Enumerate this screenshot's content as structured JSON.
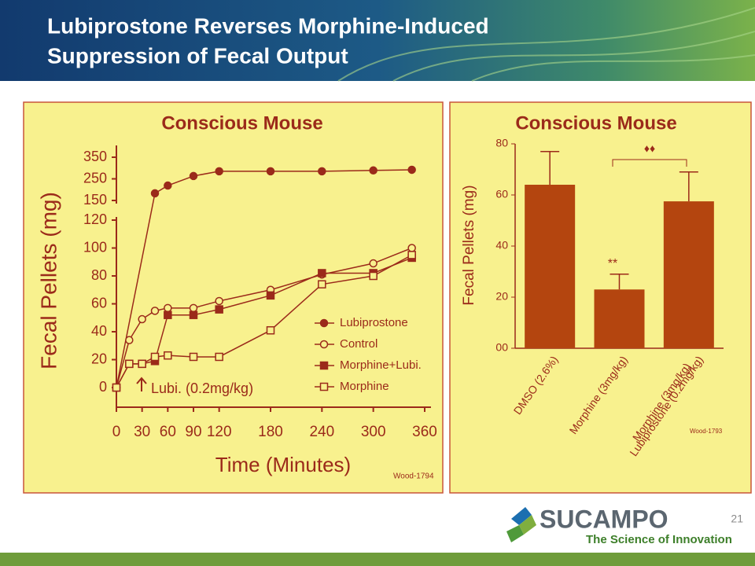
{
  "header": {
    "title": [
      "Lubiprostone Reverses Morphine-Induced",
      "Suppression of Fecal Output"
    ]
  },
  "chart_data": [
    {
      "type": "line",
      "title": "Conscious Mouse",
      "xlabel": "Time (Minutes)",
      "ylabel": "Fecal Pellets (mg)",
      "xlim": [
        0,
        360
      ],
      "xticks": [
        0,
        30,
        60,
        90,
        120,
        180,
        240,
        300,
        360
      ],
      "ylim": [
        0,
        350
      ],
      "y_break": [
        120,
        150
      ],
      "yticks": [
        0,
        20,
        40,
        60,
        80,
        100,
        120,
        150,
        250,
        350
      ],
      "color": "#9b2a1a",
      "legend": "right",
      "series": [
        {
          "name": "Lubiprostone",
          "marker": "filled-circle",
          "x": [
            0,
            45,
            60,
            90,
            120,
            180,
            240,
            300,
            345
          ],
          "values": [
            0,
            183,
            219,
            263,
            285,
            285,
            285,
            289,
            292
          ]
        },
        {
          "name": "Control",
          "marker": "open-circle",
          "x": [
            0,
            15,
            30,
            45,
            60,
            90,
            120,
            180,
            240,
            300,
            345
          ],
          "values": [
            0,
            34,
            49,
            55,
            57,
            57,
            62,
            70,
            81,
            89,
            100
          ]
        },
        {
          "name": "Morphine+Lubi.",
          "marker": "filled-square",
          "x": [
            0,
            15,
            30,
            45,
            60,
            90,
            120,
            180,
            240,
            300,
            345
          ],
          "values": [
            0,
            17,
            17,
            19,
            52,
            52,
            56,
            66,
            82,
            82,
            93
          ]
        },
        {
          "name": "Morphine",
          "marker": "open-square",
          "x": [
            0,
            15,
            30,
            45,
            60,
            90,
            120,
            180,
            240,
            300,
            345
          ],
          "values": [
            0,
            17,
            17,
            22,
            23,
            22,
            22,
            41,
            74,
            80,
            95
          ]
        }
      ],
      "annotations": [
        "Lubi. (0.2mg/kg)",
        "Wood-1794"
      ]
    },
    {
      "type": "bar",
      "title": "Conscious Mouse",
      "ylabel": "Fecal Pellets (mg)",
      "categories": [
        "DMSO (2.6%)",
        "Morphine (3mg/kg)",
        [
          "Morphine (3mg/kg)",
          "Lubiprostone (0.2mg/kg)"
        ]
      ],
      "values": [
        64,
        23,
        57.5
      ],
      "errors": [
        13,
        6,
        11.5
      ],
      "color": "#b4450f",
      "ylim": [
        0,
        80
      ],
      "yticks": [
        {
          "value": 0,
          "label": "00"
        },
        20,
        40,
        60,
        80
      ],
      "annotations": [
        "**",
        "♦♦",
        "Wood-1793"
      ]
    }
  ],
  "footer": {
    "page": "21",
    "logo": "SUCAMPO",
    "tagline": "The Science of Innovation"
  }
}
